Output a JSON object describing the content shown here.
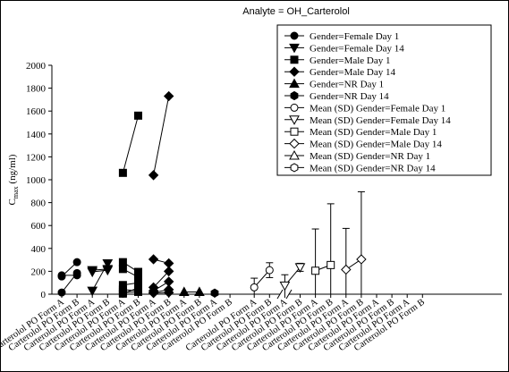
{
  "chart_data": {
    "type": "scatter",
    "title": "Analyte = OH_Carterolol",
    "ylabel_main": "C",
    "ylabel_sub": "max",
    "ylabel_unit": " (ng/ml)",
    "ylim": [
      0,
      2000
    ],
    "yticks": [
      0,
      200,
      400,
      600,
      800,
      1000,
      1200,
      1400,
      1600,
      1800,
      2000
    ],
    "grid": false,
    "legend_position": "top-right",
    "categories": [
      "Carterolol PO Form A",
      "Carterolol PO Form B",
      "Carterolol PO Form A",
      "Carterolol PO Form B",
      "Carterolol PO Form A",
      "Carterolol PO Form B",
      "Carterolol PO Form A",
      "Carterolol PO Form B",
      "Carterolol PO Form A",
      "Carterolol PO Form B",
      "Carterolol PO Form A",
      "Carterolol PO Form B",
      "Carterolol PO Form A",
      "Carterolol PO Form B",
      "Carterolol PO Form A",
      "Carterolol PO Form B",
      "Carterolol PO Form A",
      "Carterolol PO Form B",
      "Carterolol PO Form A",
      "Carterolol PO Form B",
      "Carterolol PO Form A",
      "Carterolol PO Form B",
      "Carterolol PO Form A",
      "Carterolol PO Form B"
    ],
    "axis_break_after_category": 11,
    "legend": [
      {
        "label": "Gender=Female  Day 1",
        "marker": "circle",
        "filled": true
      },
      {
        "label": "Gender=Female  Day 14",
        "marker": "triangle-down",
        "filled": true
      },
      {
        "label": "Gender=Male  Day 1",
        "marker": "square",
        "filled": true
      },
      {
        "label": "Gender=Male  Day 14",
        "marker": "diamond",
        "filled": true
      },
      {
        "label": "Gender=NR  Day 1",
        "marker": "triangle-up",
        "filled": true
      },
      {
        "label": "Gender=NR  Day 14",
        "marker": "hexagon",
        "filled": true
      },
      {
        "label": "Mean (SD) Gender=Female Day 1",
        "marker": "circle",
        "filled": false
      },
      {
        "label": "Mean (SD) Gender=Female Day 14",
        "marker": "triangle-down",
        "filled": false
      },
      {
        "label": "Mean (SD) Gender=Male  Day 1",
        "marker": "square",
        "filled": false
      },
      {
        "label": "Mean (SD) Gender=Male  Day 14",
        "marker": "diamond",
        "filled": false
      },
      {
        "label": "Mean (SD) Gender=NR  Day 1",
        "marker": "triangle-up",
        "filled": false
      },
      {
        "label": "Mean (SD) Gender=NR  Day 14",
        "marker": "hexagon",
        "filled": false
      }
    ],
    "individual_subjects": [
      {
        "group": "Gender=Female  Day 1",
        "marker": "circle",
        "pairs": [
          [
            15,
            185
          ],
          [
            155,
            280
          ],
          [
            165,
            165
          ]
        ]
      },
      {
        "group": "Gender=Female  Day 14",
        "marker": "triangle-down",
        "pairs": [
          [
            30,
            270
          ],
          [
            195,
            210
          ],
          [
            210,
            220
          ]
        ]
      },
      {
        "group": "Gender=Male  Day 1",
        "marker": "square",
        "pairs": [
          [
            1060,
            1560
          ],
          [
            280,
            195
          ],
          [
            220,
            150
          ],
          [
            80,
            100
          ],
          [
            40,
            30
          ],
          [
            15,
            20
          ],
          [
            5,
            55
          ]
        ]
      },
      {
        "group": "Gender=Male  Day 14",
        "marker": "diamond",
        "pairs": [
          [
            1040,
            1730
          ],
          [
            305,
            270
          ],
          [
            60,
            200
          ],
          [
            30,
            110
          ],
          [
            15,
            40
          ],
          [
            10,
            15
          ]
        ]
      },
      {
        "group": "Gender=NR  Day 1",
        "marker": "triangle-up",
        "values": [
          20,
          20
        ]
      },
      {
        "group": "Gender=NR  Day 14",
        "marker": "hexagon",
        "values": [
          10
        ]
      }
    ],
    "means": [
      {
        "group": "Mean (SD) Gender=Female Day 1",
        "marker": "circle",
        "mean": [
          60,
          210
        ],
        "sd": [
          80,
          65
        ]
      },
      {
        "group": "Mean (SD) Gender=Female Day 14",
        "marker": "triangle-down",
        "mean": [
          75,
          235
        ],
        "sd": [
          95,
          35
        ]
      },
      {
        "group": "Mean (SD) Gender=Male  Day 1",
        "marker": "square",
        "mean": [
          205,
          255
        ],
        "sd": [
          365,
          535
        ]
      },
      {
        "group": "Mean (SD) Gender=Male  Day 14",
        "marker": "diamond",
        "mean": [
          215,
          305
        ],
        "sd": [
          360,
          590
        ]
      }
    ]
  }
}
